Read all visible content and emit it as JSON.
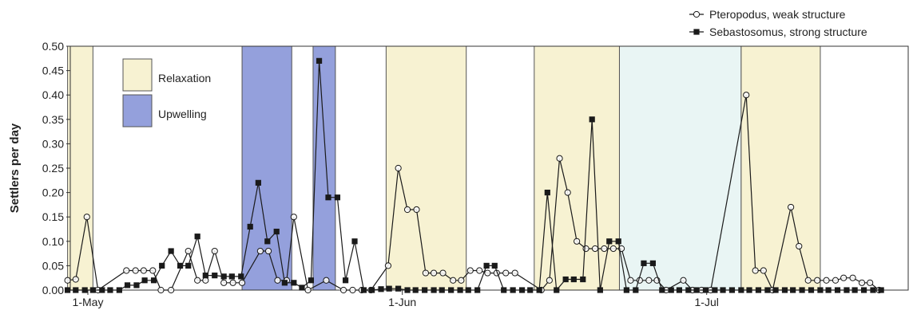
{
  "chart_data": {
    "type": "line",
    "title": "",
    "xlabel": "",
    "ylabel": "Settlers per day",
    "ylim": [
      0,
      0.5
    ],
    "yticks": [
      "0.00",
      "0.05",
      "0.10",
      "0.15",
      "0.20",
      "0.25",
      "0.30",
      "0.35",
      "0.40",
      "0.45",
      "0.50"
    ],
    "xticks": [
      {
        "day": 0,
        "label": "1-May"
      },
      {
        "day": 31,
        "label": "1-Jun"
      },
      {
        "day": 61,
        "label": "1-Jul"
      }
    ],
    "x_unit": "days from 1-May",
    "grid": false,
    "legend_placement": "top-right",
    "series": [
      {
        "name": "Pteropodus, weak structure",
        "marker": "open-circle",
        "color": "#1a1a1a",
        "points": [
          [
            -2,
            0.02
          ],
          [
            -1.2,
            0.022
          ],
          [
            -0.1,
            0.15
          ],
          [
            1,
            0
          ],
          [
            3.8,
            0.04
          ],
          [
            4.7,
            0.04
          ],
          [
            5.5,
            0.04
          ],
          [
            6.4,
            0.04
          ],
          [
            7.2,
            0
          ],
          [
            8.2,
            0
          ],
          [
            9.9,
            0.08
          ],
          [
            10.8,
            0.02
          ],
          [
            11.6,
            0.02
          ],
          [
            12.5,
            0.08
          ],
          [
            13.4,
            0.015
          ],
          [
            14.3,
            0.015
          ],
          [
            15.2,
            0.015
          ],
          [
            17,
            0.08
          ],
          [
            17.8,
            0.08
          ],
          [
            18.7,
            0.02
          ],
          [
            19.6,
            0.02
          ],
          [
            20.3,
            0.15
          ],
          [
            21.7,
            0
          ],
          [
            23.5,
            0.02
          ],
          [
            25.2,
            0
          ],
          [
            26.1,
            0
          ],
          [
            27,
            0
          ],
          [
            27.9,
            0
          ],
          [
            29.6,
            0.05
          ],
          [
            30.6,
            0.25
          ],
          [
            31.5,
            0.165
          ],
          [
            32.4,
            0.165
          ],
          [
            33.3,
            0.035
          ],
          [
            34.1,
            0.035
          ],
          [
            35,
            0.035
          ],
          [
            36,
            0.02
          ],
          [
            36.8,
            0.02
          ],
          [
            37.7,
            0.04
          ],
          [
            38.6,
            0.04
          ],
          [
            39.4,
            0.035
          ],
          [
            40.3,
            0.035
          ],
          [
            41.2,
            0.035
          ],
          [
            42.1,
            0.035
          ],
          [
            44.7,
            0
          ],
          [
            45.5,
            0.02
          ],
          [
            46.5,
            0.27
          ],
          [
            47.3,
            0.2
          ],
          [
            48.2,
            0.1
          ],
          [
            49.1,
            0.085
          ],
          [
            50,
            0.085
          ],
          [
            50.9,
            0.085
          ],
          [
            51.8,
            0.085
          ],
          [
            52.6,
            0.085
          ],
          [
            53.5,
            0.02
          ],
          [
            54.4,
            0.02
          ],
          [
            55.3,
            0.02
          ],
          [
            56.1,
            0.02
          ],
          [
            57,
            0
          ],
          [
            58.7,
            0.02
          ],
          [
            59.6,
            0
          ],
          [
            60.5,
            0
          ],
          [
            61.4,
            0
          ],
          [
            64.9,
            0.4
          ],
          [
            65.8,
            0.04
          ],
          [
            66.6,
            0.04
          ],
          [
            67.5,
            0
          ],
          [
            69.3,
            0.17
          ],
          [
            70.1,
            0.09
          ],
          [
            71,
            0.02
          ],
          [
            71.9,
            0.02
          ],
          [
            72.8,
            0.02
          ],
          [
            73.7,
            0.02
          ],
          [
            74.5,
            0.025
          ],
          [
            75.4,
            0.025
          ],
          [
            76.3,
            0.015
          ],
          [
            77.1,
            0.015
          ],
          [
            78,
            0
          ]
        ]
      },
      {
        "name": "Sebastosomus, strong structure",
        "marker": "filled-square",
        "color": "#1a1a1a",
        "points": [
          [
            -2,
            0
          ],
          [
            -1.2,
            0
          ],
          [
            -0.3,
            0
          ],
          [
            0.5,
            0
          ],
          [
            1.4,
            0
          ],
          [
            2.2,
            0
          ],
          [
            3.1,
            0
          ],
          [
            3.9,
            0.01
          ],
          [
            4.8,
            0.01
          ],
          [
            5.6,
            0.02
          ],
          [
            6.5,
            0.02
          ],
          [
            7.3,
            0.05
          ],
          [
            8.2,
            0.08
          ],
          [
            9.1,
            0.05
          ],
          [
            9.9,
            0.05
          ],
          [
            10.8,
            0.11
          ],
          [
            11.6,
            0.03
          ],
          [
            12.5,
            0.03
          ],
          [
            13.4,
            0.028
          ],
          [
            14.2,
            0.028
          ],
          [
            15.1,
            0.028
          ],
          [
            16,
            0.13
          ],
          [
            16.8,
            0.22
          ],
          [
            17.7,
            0.1
          ],
          [
            18.6,
            0.12
          ],
          [
            19.4,
            0.015
          ],
          [
            20.3,
            0.015
          ],
          [
            21.1,
            0.005
          ],
          [
            22,
            0.02
          ],
          [
            22.8,
            0.47
          ],
          [
            23.7,
            0.19
          ],
          [
            24.6,
            0.19
          ],
          [
            25.4,
            0.02
          ],
          [
            26.3,
            0.1
          ],
          [
            27.2,
            0
          ],
          [
            28,
            0
          ],
          [
            28.9,
            0.002
          ],
          [
            29.7,
            0.003
          ],
          [
            30.6,
            0.003
          ],
          [
            31.5,
            0
          ],
          [
            32.3,
            0
          ],
          [
            33.2,
            0
          ],
          [
            34.1,
            0
          ],
          [
            34.9,
            0
          ],
          [
            35.8,
            0
          ],
          [
            36.7,
            0
          ],
          [
            37.5,
            0
          ],
          [
            38.4,
            0
          ],
          [
            39.3,
            0.05
          ],
          [
            40.1,
            0.05
          ],
          [
            41,
            0
          ],
          [
            41.9,
            0
          ],
          [
            42.8,
            0
          ],
          [
            43.6,
            0
          ],
          [
            44.5,
            0
          ],
          [
            45.3,
            0.2
          ],
          [
            46.2,
            0
          ],
          [
            47.1,
            0.022
          ],
          [
            47.9,
            0.022
          ],
          [
            48.8,
            0.022
          ],
          [
            49.7,
            0.35
          ],
          [
            50.5,
            0
          ],
          [
            51.4,
            0.1
          ],
          [
            52.3,
            0.1
          ],
          [
            53.1,
            0
          ],
          [
            54,
            0
          ],
          [
            54.8,
            0.055
          ],
          [
            55.7,
            0.055
          ],
          [
            56.6,
            0
          ],
          [
            57.5,
            0
          ],
          [
            58.3,
            0
          ],
          [
            59.2,
            0
          ],
          [
            60,
            0
          ],
          [
            60.9,
            0
          ],
          [
            61.8,
            0
          ],
          [
            62.6,
            0
          ],
          [
            63.5,
            0
          ],
          [
            64.4,
            0
          ],
          [
            65.2,
            0
          ],
          [
            66.1,
            0
          ],
          [
            67,
            0
          ],
          [
            67.8,
            0
          ],
          [
            68.7,
            0
          ],
          [
            69.5,
            0
          ],
          [
            70.4,
            0
          ],
          [
            71.3,
            0
          ],
          [
            72.2,
            0
          ],
          [
            73,
            0
          ],
          [
            73.9,
            0
          ],
          [
            74.8,
            0
          ],
          [
            75.6,
            0
          ],
          [
            76.5,
            0
          ],
          [
            77.4,
            0
          ],
          [
            78.2,
            0
          ]
        ]
      }
    ],
    "periods": [
      {
        "type": "relaxation",
        "start": -2,
        "end": 0.5
      },
      {
        "type": "upwelling",
        "start": 15.2,
        "end": 20.1
      },
      {
        "type": "upwelling",
        "start": 22.2,
        "end": 24.4
      },
      {
        "type": "relaxation",
        "start": 29.4,
        "end": 37.3
      },
      {
        "type": "relaxation",
        "start": 44,
        "end": 52.4
      },
      {
        "type": "relaxation-light",
        "start": 52.4,
        "end": 64.4
      },
      {
        "type": "relaxation",
        "start": 64.4,
        "end": 72.2
      }
    ],
    "period_legend": [
      {
        "label": "Relaxation",
        "type": "relaxation"
      },
      {
        "label": "Upwelling",
        "type": "upwelling"
      }
    ],
    "colors": {
      "relaxation": "#f7f2d2",
      "relaxation-light": "#e9f5f4",
      "upwelling": "#94a0dc",
      "line": "#1a1a1a"
    }
  }
}
